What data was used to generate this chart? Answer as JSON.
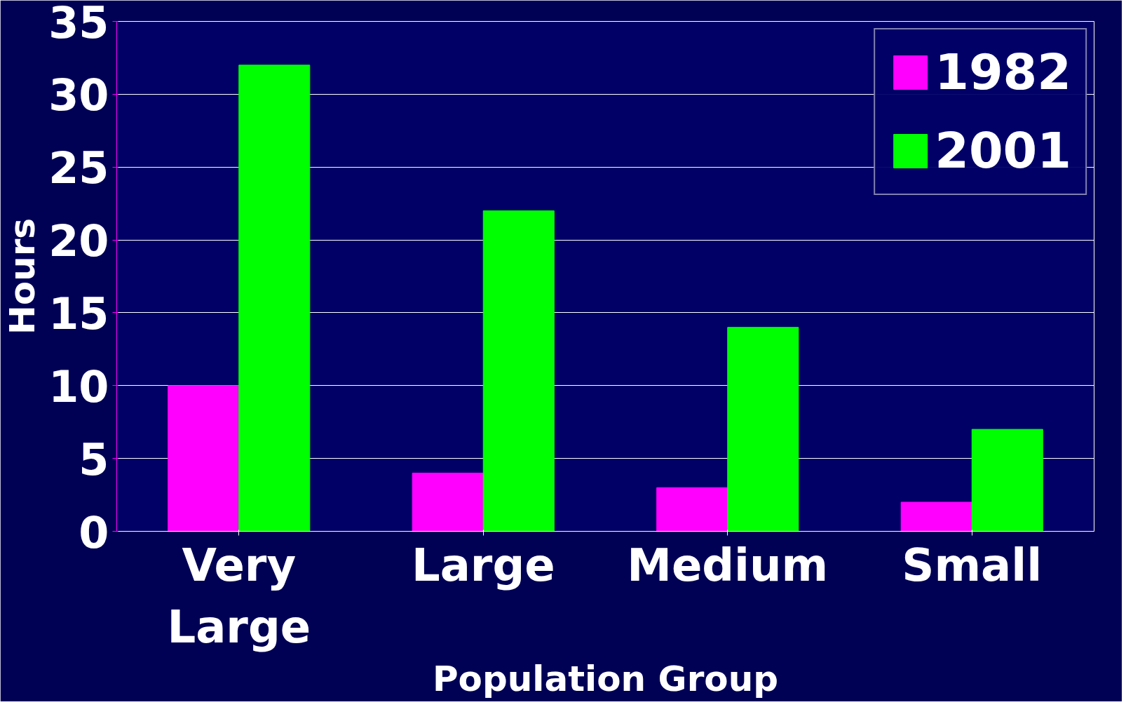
{
  "chart_data": {
    "type": "bar",
    "xlabel": "Population Group",
    "ylabel": "Hours",
    "categories": [
      "Very Large",
      "Large",
      "Medium",
      "Small"
    ],
    "series": [
      {
        "name": "1982",
        "color": "#ff00ff",
        "values": [
          10,
          4,
          3,
          2
        ]
      },
      {
        "name": "2001",
        "color": "#00ff00",
        "values": [
          32,
          22,
          14,
          7
        ]
      }
    ],
    "ylim": [
      0,
      35
    ],
    "yticks": [
      0,
      5,
      10,
      15,
      20,
      25,
      30,
      35
    ],
    "grid": "y",
    "legend": "top right"
  }
}
